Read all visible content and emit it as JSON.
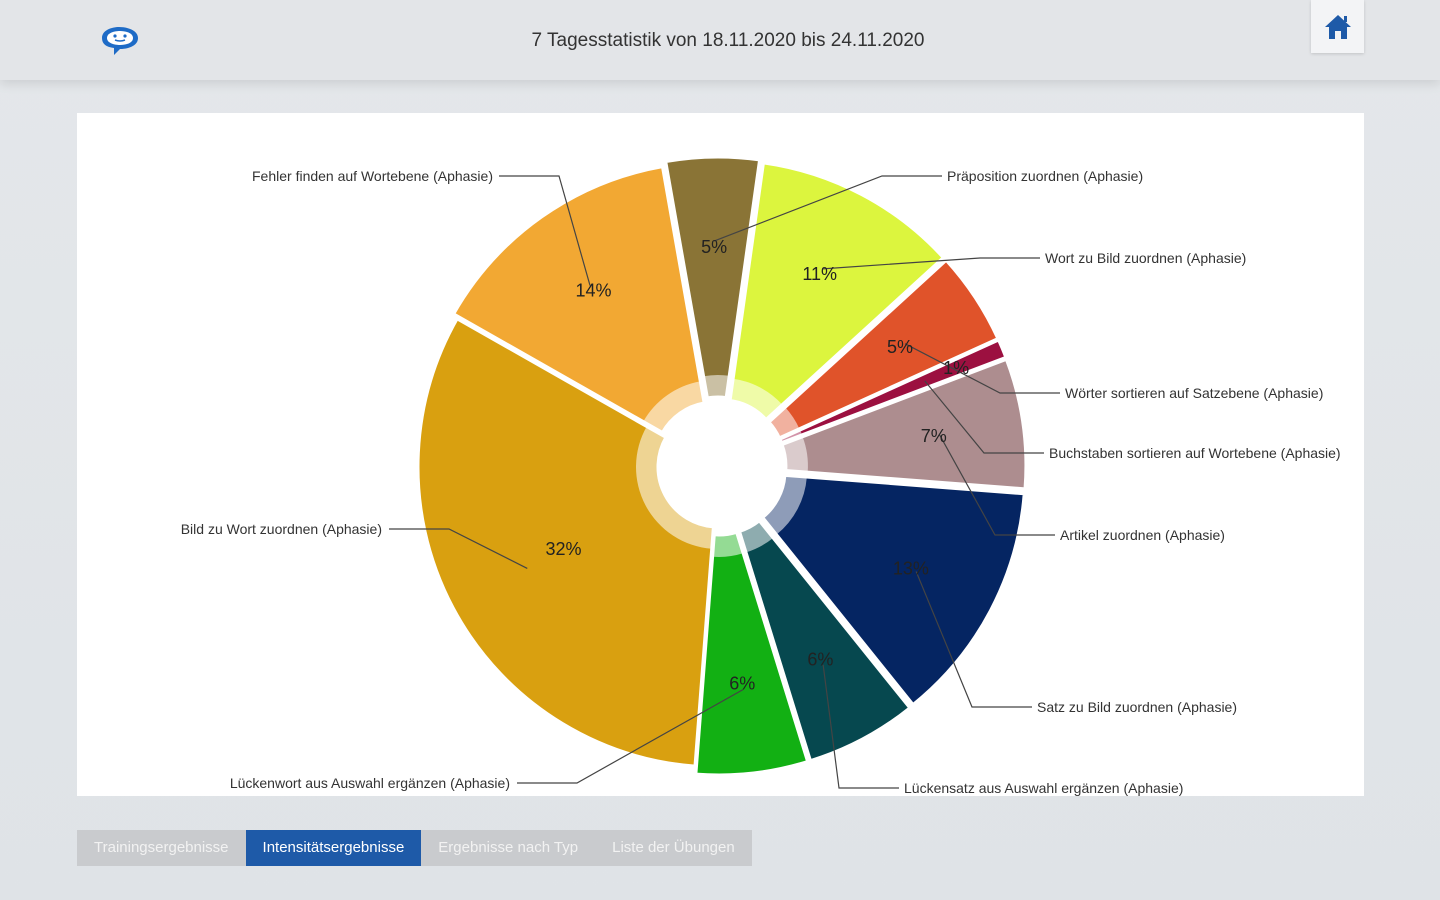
{
  "header": {
    "title": "7 Tagesstatistik von 18.11.2020 bis 24.11.2020",
    "app_icon": "speech-bubble-face-icon",
    "home_icon": "home-icon"
  },
  "tabs": [
    {
      "label": "Trainingsergebnisse",
      "active": false
    },
    {
      "label": "Intensitätsergebnisse",
      "active": true
    },
    {
      "label": "Ergebnisse nach Typ",
      "active": false
    },
    {
      "label": "Liste der Übungen",
      "active": false
    }
  ],
  "colors": {
    "accent": "#1e5aa8",
    "tab_inactive": "#c9cbce"
  },
  "chart_data": {
    "type": "pie",
    "title": "",
    "slices": [
      {
        "label": "Präposition zuordnen (Aphasie)",
        "percent_label": "5%",
        "value": 5,
        "color": "#8a7436"
      },
      {
        "label": "Wort zu Bild zuordnen (Aphasie)",
        "percent_label": "11%",
        "value": 11,
        "color": "#dcf53e"
      },
      {
        "label": "Wörter sortieren auf Satzebene (Aphasie)",
        "percent_label": "5%",
        "value": 5,
        "color": "#e0532a"
      },
      {
        "label": "Buchstaben sortieren auf Wortebene (Aphasie)",
        "percent_label": "1%",
        "value": 1,
        "color": "#9c1040"
      },
      {
        "label": "Artikel zuordnen (Aphasie)",
        "percent_label": "7%",
        "value": 7,
        "color": "#ad8d8f"
      },
      {
        "label": "Satz zu Bild zuordnen (Aphasie)",
        "percent_label": "13%",
        "value": 13,
        "color": "#052562"
      },
      {
        "label": "Lückensatz aus Auswahl ergänzen (Aphasie)",
        "percent_label": "6%",
        "value": 6,
        "color": "#06484f"
      },
      {
        "label": "Lückenwort aus Auswahl ergänzen (Aphasie)",
        "percent_label": "6%",
        "value": 6,
        "color": "#12b013"
      },
      {
        "label": "Bild zu Wort zuordnen (Aphasie)",
        "percent_label": "32%",
        "value": 32,
        "color": "#d9a010"
      },
      {
        "label": "Fehler finden auf Wortebene (Aphasie)",
        "percent_label": "14%",
        "value": 14,
        "color": "#f2a833"
      }
    ]
  }
}
